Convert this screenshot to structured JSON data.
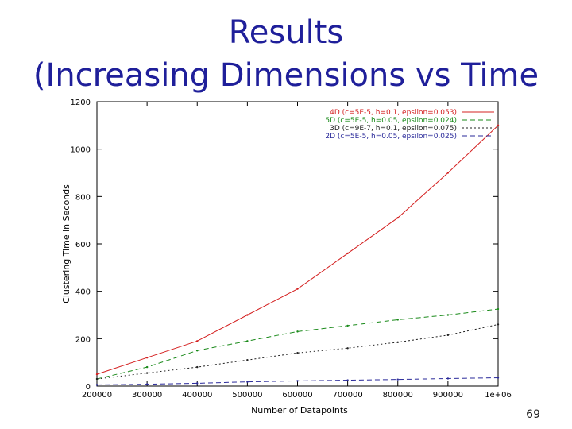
{
  "slide": {
    "title_line1": "Results",
    "title_line2": "(Increasing Dimensions vs Time",
    "page_number": "69",
    "title_color": "#1f1f9a"
  },
  "chart_data": {
    "type": "line",
    "xlabel": "Number of Datapoints",
    "ylabel": "Clustering Time in Seconds",
    "xlim": [
      200000,
      1000000
    ],
    "ylim": [
      0,
      1200
    ],
    "x_ticks": [
      200000,
      300000,
      400000,
      500000,
      600000,
      700000,
      800000,
      900000,
      1000000
    ],
    "x_tick_labels": [
      "200000",
      "300000",
      "400000",
      "500000",
      "600000",
      "700000",
      "800000",
      "900000",
      "1e+06"
    ],
    "y_ticks": [
      0,
      200,
      400,
      600,
      800,
      1000,
      1200
    ],
    "y_tick_labels": [
      "0",
      "200",
      "400",
      "600",
      "800",
      "1000",
      "1200"
    ],
    "legend_position": "top-right",
    "series": [
      {
        "name": "4D (c=5E-5, h=0.1, epsilon=0.053)",
        "color": "#d42020",
        "dash": "solid",
        "x": [
          200000,
          300000,
          400000,
          500000,
          600000,
          700000,
          800000,
          900000,
          1000000
        ],
        "y": [
          50,
          120,
          190,
          300,
          410,
          560,
          710,
          900,
          1100
        ]
      },
      {
        "name": "5D (c=5E-5, h=0.05, epsilon=0.024)",
        "color": "#1a8a1a",
        "dash": "dashed",
        "x": [
          200000,
          300000,
          400000,
          500000,
          600000,
          700000,
          800000,
          900000,
          1000000
        ],
        "y": [
          30,
          80,
          150,
          190,
          230,
          255,
          280,
          300,
          325
        ]
      },
      {
        "name": "3D (c=9E-7, h=0.1, epsilon=0.075)",
        "color": "#222222",
        "dash": "dotted",
        "x": [
          200000,
          300000,
          400000,
          500000,
          600000,
          700000,
          800000,
          900000,
          1000000
        ],
        "y": [
          30,
          55,
          80,
          110,
          140,
          160,
          185,
          215,
          260
        ]
      },
      {
        "name": "2D (c=5E-5, h=0.05, epsilon=0.025)",
        "color": "#2a2a9a",
        "dash": "dashed",
        "x": [
          200000,
          300000,
          400000,
          500000,
          600000,
          700000,
          800000,
          900000,
          1000000
        ],
        "y": [
          5,
          8,
          12,
          18,
          22,
          25,
          28,
          32,
          35
        ]
      }
    ]
  }
}
